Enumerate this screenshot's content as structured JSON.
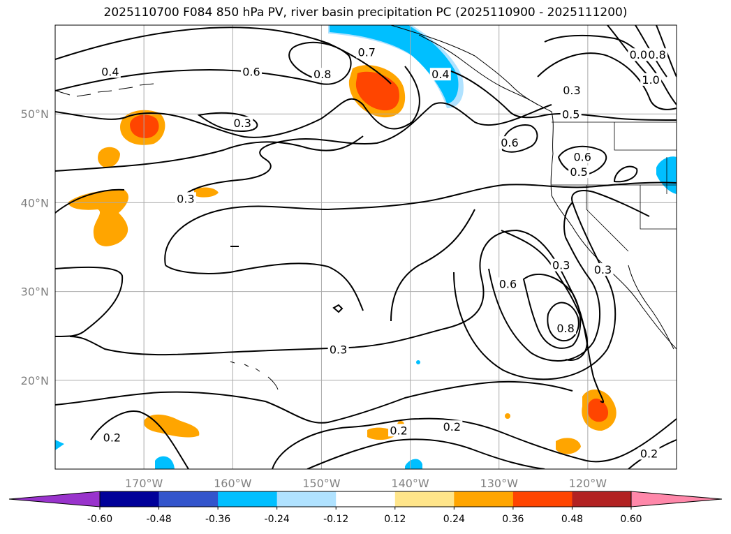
{
  "chart_data": {
    "type": "map-contour",
    "title": "2025110700 F084 850 hPa PV, river basin precipitation PC (2025110900 - 2025111200)",
    "lon_range": [
      -180,
      -110
    ],
    "lat_range": [
      10,
      60
    ],
    "lon_ticks": [
      {
        "value": -170,
        "label": "170°W"
      },
      {
        "value": -160,
        "label": "160°W"
      },
      {
        "value": -150,
        "label": "150°W"
      },
      {
        "value": -140,
        "label": "140°W"
      },
      {
        "value": -130,
        "label": "130°W"
      },
      {
        "value": -120,
        "label": "120°W"
      }
    ],
    "lat_ticks": [
      {
        "value": 20,
        "label": "20°N"
      },
      {
        "value": 30,
        "label": "30°N"
      },
      {
        "value": 40,
        "label": "40°N"
      },
      {
        "value": 50,
        "label": "50°N"
      }
    ],
    "grid": true,
    "contour_labels": [
      {
        "text": "0.7",
        "lon": -144.9,
        "lat": 56.9
      },
      {
        "text": "0.8",
        "lon": -149.9,
        "lat": 54.4
      },
      {
        "text": "0.4",
        "lon": -136.6,
        "lat": 54.4
      },
      {
        "text": "0.6",
        "lon": -157.9,
        "lat": 54.7
      },
      {
        "text": "0.4",
        "lon": -173.8,
        "lat": 54.7
      },
      {
        "text": "0.3",
        "lon": -158.9,
        "lat": 48.9
      },
      {
        "text": "0.3",
        "lon": -121.8,
        "lat": 52.6
      },
      {
        "text": "0.5",
        "lon": -121.9,
        "lat": 49.9
      },
      {
        "text": "0.6",
        "lon": -128.8,
        "lat": 46.7
      },
      {
        "text": "0.6",
        "lon": -120.6,
        "lat": 45.1
      },
      {
        "text": "0.5",
        "lon": -121.0,
        "lat": 43.4
      },
      {
        "text": "0.3",
        "lon": -165.3,
        "lat": 40.4
      },
      {
        "text": "0.3",
        "lon": -123.0,
        "lat": 32.9
      },
      {
        "text": "0.6",
        "lon": -129.0,
        "lat": 30.8
      },
      {
        "text": "0.3",
        "lon": -118.3,
        "lat": 32.4
      },
      {
        "text": "0.8",
        "lon": -122.5,
        "lat": 25.8
      },
      {
        "text": "0.3",
        "lon": -148.1,
        "lat": 23.4
      },
      {
        "text": "0.2",
        "lon": -173.6,
        "lat": 13.5
      },
      {
        "text": "0.2",
        "lon": -141.3,
        "lat": 14.3
      },
      {
        "text": "0.2",
        "lon": -135.3,
        "lat": 14.7
      },
      {
        "text": "0.2",
        "lon": -113.1,
        "lat": 11.7
      },
      {
        "text": "0.0",
        "lon": -114.3,
        "lat": 56.6
      },
      {
        "text": "0.8",
        "lon": -112.2,
        "lat": 56.6
      },
      {
        "text": "1.0",
        "lon": -112.9,
        "lat": 53.8
      }
    ],
    "colorbar": {
      "levels": [
        "-0.60",
        "-0.48",
        "-0.36",
        "-0.24",
        "-0.12",
        "0.12",
        "0.24",
        "0.36",
        "0.48",
        "0.60"
      ],
      "colors": [
        "#9933cc",
        "#000099",
        "#3355cc",
        "#00bfff",
        "#b0e2ff",
        "#ffffff",
        "#ffe58a",
        "#ffa500",
        "#ff4500",
        "#b22222",
        "#ff88aa"
      ],
      "extend": "both"
    }
  }
}
